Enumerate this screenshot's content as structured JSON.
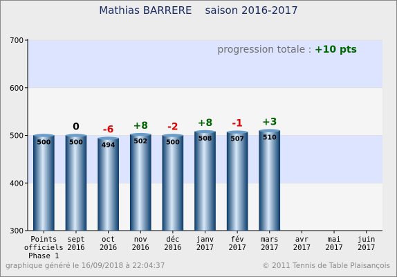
{
  "title": "Mathias BARRERE    saison 2016-2017",
  "footer": {
    "generated": "graphique généré le 16/09/2018 à 22:04:37",
    "copyright": "© 2011 Tennis de Table Plaisançois"
  },
  "chart_data": {
    "type": "bar",
    "categories": [
      [
        "Points",
        "officiels",
        "Phase 1"
      ],
      [
        "sept",
        "2016"
      ],
      [
        "oct",
        "2016"
      ],
      [
        "nov",
        "2016"
      ],
      [
        "déc",
        "2016"
      ],
      [
        "janv",
        "2017"
      ],
      [
        "fév",
        "2017"
      ],
      [
        "mars",
        "2017"
      ],
      [
        "avr",
        "2017"
      ],
      [
        "mai",
        "2017"
      ],
      [
        "juin",
        "2017"
      ]
    ],
    "values": [
      500,
      500,
      494,
      502,
      500,
      508,
      507,
      510,
      null,
      null,
      null
    ],
    "changes": [
      null,
      "0",
      "-6",
      "+8",
      "-2",
      "+8",
      "-1",
      "+3",
      null,
      null,
      null
    ],
    "ylim": [
      300,
      700
    ],
    "yticks": [
      300,
      400,
      500,
      600,
      700
    ],
    "annotation": {
      "label": "progression totale : ",
      "value": "+10 pts"
    },
    "colors": {
      "positive": "#006400",
      "negative": "#e00000",
      "neutral": "#000000",
      "band_blue": "#dde4ff",
      "band_white": "#f5f5f5",
      "bar_dark": "#0d3f6e",
      "bar_light": "#d8e8f8"
    },
    "grid": true
  }
}
